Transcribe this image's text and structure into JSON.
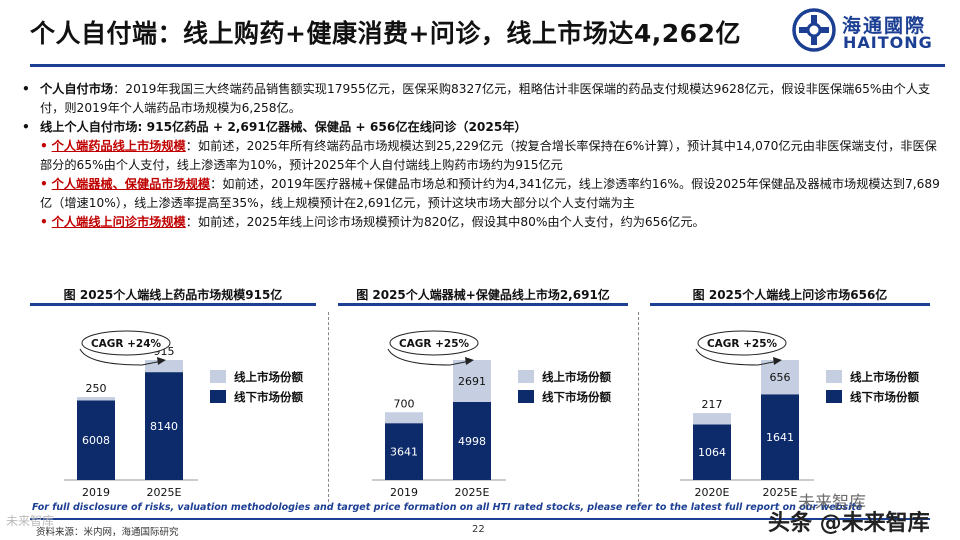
{
  "header": {
    "title": "个人自付端：线上购药+健康消费+问诊，线上市场达4,262亿",
    "logo_cn": "海通國際",
    "logo_en": "HAITONG",
    "brand_color": "#1c3f94"
  },
  "bullets": {
    "b1_head": "个人自付市场",
    "b1_text": "：2019年我国三大终端药品销售额实现17955亿元，医保采购8327亿元，粗略估计非医保端的药品支付规模达9628亿元，假设非医保端65%由个人支付，则2019年个人端药品市场规模为6,258亿。",
    "b2_head": "线上个人自付市场: 915亿药品 + 2,691亿器械、保健品 + 656亿在线问诊（2025年）",
    "s1_head": "个人端药品线上市场规模",
    "s1_text": "：如前述，2025年所有终端药品市场规模达到25,229亿元（按复合增长率保持在6%计算），预计其中14,070亿元由非医保端支付，非医保部分的65%由个人支付，线上渗透率为10%，预计2025年个人自付端线上购药市场约为915亿元",
    "s2_head": "个人端器械、保健品市场规模",
    "s2_text": "：如前述，2019年医疗器械+保健品市场总和预计约为4,341亿元，线上渗透率约16%。假设2025年保健品及器械市场规模达到7,689亿（增速10%），线上渗透率提高至35%，线上规模预计在2,691亿元，预计这块市场大部分以个人支付端为主",
    "s3_head": "个人端线上问诊市场规模",
    "s3_text": "：如前述，2025年线上问诊市场规模预计为820亿，假设其中80%由个人支付，约为656亿元。",
    "bullet_glyph": "•",
    "sub_glyph": "•",
    "accent_red": "#c00000"
  },
  "chart_data": [
    {
      "type": "bar",
      "stacked": true,
      "title": "图 2025个人端线上药品市场规模915亿",
      "categories": [
        "2019",
        "2025E"
      ],
      "series": [
        {
          "name": "线下市场份额",
          "values": [
            6008,
            8140
          ],
          "color": "#0d2a6b"
        },
        {
          "name": "线上市场份额",
          "values": [
            250,
            915
          ],
          "color": "#c6cfe2"
        }
      ],
      "annotation": "CAGR +24%",
      "legend_position": "right"
    },
    {
      "type": "bar",
      "stacked": true,
      "title": "图 2025个人端器械+保健品线上市场2,691亿",
      "categories": [
        "2019",
        "2025E"
      ],
      "series": [
        {
          "name": "线下市场份额",
          "values": [
            3641,
            4998
          ],
          "color": "#0d2a6b"
        },
        {
          "name": "线上市场份额",
          "values": [
            700,
            2691
          ],
          "color": "#c6cfe2"
        }
      ],
      "annotation": "CAGR +25%",
      "legend_position": "right"
    },
    {
      "type": "bar",
      "stacked": true,
      "title": "图 2025个人端线上问诊市场656亿",
      "categories": [
        "2020E",
        "2025E"
      ],
      "series": [
        {
          "name": "线下市场份额",
          "values": [
            1064,
            1641
          ],
          "color": "#0d2a6b"
        },
        {
          "name": "线上市场份额",
          "values": [
            217,
            656
          ],
          "color": "#c6cfe2"
        }
      ],
      "annotation": "CAGR +25%",
      "legend_position": "right"
    }
  ],
  "footer": {
    "disclaimer": "For full disclosure of risks, valuation methodologies and target price formation on all HTI rated stocks, please refer to the latest full report on our website",
    "source": "资料来源：米内网，海通国际研究",
    "page": "22",
    "watermark_a": "未来智库",
    "watermark_b": "头条 @未来智库",
    "watermark_c": "未来智库"
  }
}
